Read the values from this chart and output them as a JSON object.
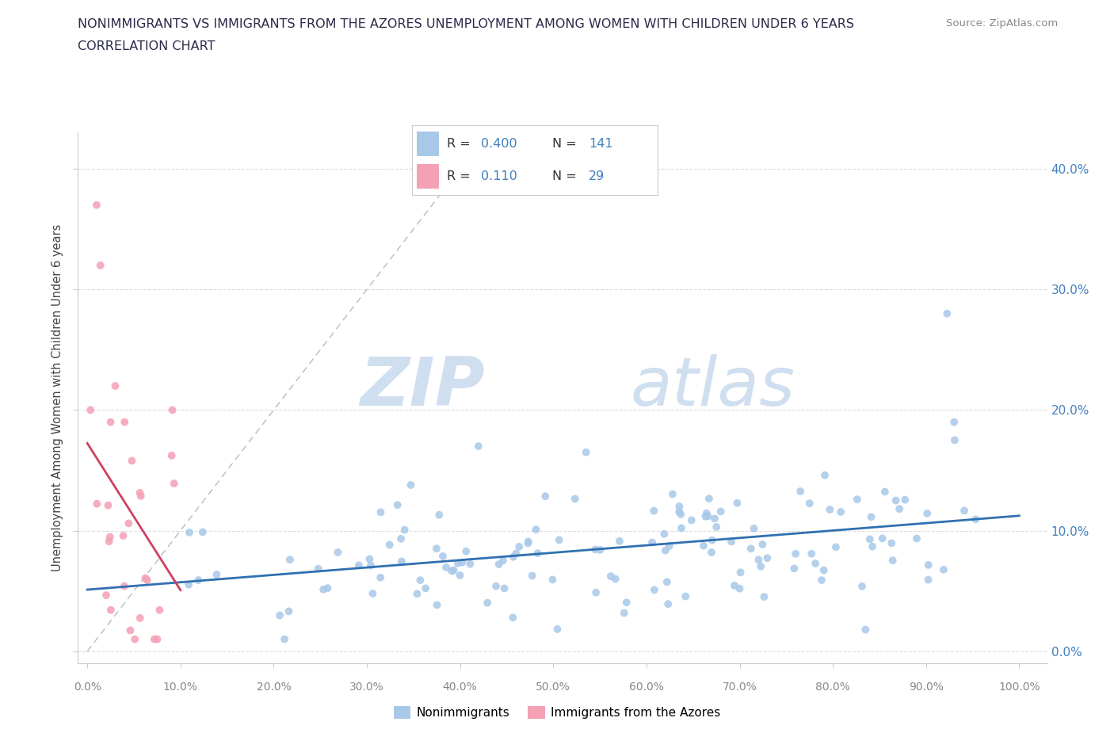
{
  "title_line1": "NONIMMIGRANTS VS IMMIGRANTS FROM THE AZORES UNEMPLOYMENT AMONG WOMEN WITH CHILDREN UNDER 6 YEARS",
  "title_line2": "CORRELATION CHART",
  "source": "Source: ZipAtlas.com",
  "ylabel": "Unemployment Among Women with Children Under 6 years",
  "xlim": [
    -0.01,
    1.03
  ],
  "ylim": [
    -0.01,
    0.43
  ],
  "xticks": [
    0.0,
    0.1,
    0.2,
    0.3,
    0.4,
    0.5,
    0.6,
    0.7,
    0.8,
    0.9,
    1.0
  ],
  "yticks": [
    0.0,
    0.1,
    0.2,
    0.3,
    0.4
  ],
  "nonimmigrant_R": 0.4,
  "nonimmigrant_N": 141,
  "immigrant_R": 0.11,
  "immigrant_N": 29,
  "nonimmigrant_color": "#a8c8e8",
  "immigrant_color": "#f4a0b5",
  "regression_nonimmigrant_color": "#3070b0",
  "regression_immigrant_color": "#d04060",
  "legend_text_color": "#4080c0",
  "watermark_zip": "ZIP",
  "watermark_atlas": "atlas",
  "watermark_color": "#d0dff0",
  "background_color": "#ffffff",
  "title_color": "#2a2a4a",
  "tick_color": "#888888",
  "grid_color": "#dddddd",
  "spine_color": "#cccccc"
}
